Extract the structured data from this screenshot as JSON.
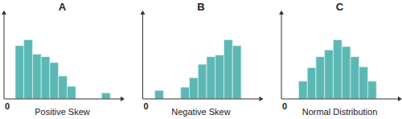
{
  "chart_data": [
    {
      "type": "histogram",
      "title": "A",
      "xlabel": "Positive Skew",
      "bins": [
        1.3,
        2.3,
        3.3,
        4.3,
        5.3,
        6.3,
        7.3,
        8.3,
        9.3,
        10.3,
        11.3,
        12.3
      ],
      "values": [
        63,
        70,
        53,
        50,
        43,
        27,
        15,
        0,
        0,
        0,
        7
      ],
      "color": "#5cb8b5",
      "xlim": [
        0,
        13.5
      ],
      "ylim": [
        0,
        100
      ],
      "xticks": [
        0
      ],
      "tick_labels": "x"
    },
    {
      "type": "histogram",
      "title": "B",
      "xlabel": "Negative Skew",
      "bins": [
        1.4,
        2.4,
        3.4,
        4.4,
        5.4,
        6.4,
        7.4,
        8.4,
        9.4,
        10.4,
        11.4
      ],
      "values": [
        10,
        0,
        0,
        14,
        25,
        41,
        50,
        52,
        70,
        63
      ],
      "color": "#5cb8b5",
      "xlim": [
        0,
        13.5
      ],
      "ylim": [
        0,
        100
      ],
      "xticks": [
        0
      ],
      "tick_labels": "x"
    },
    {
      "type": "histogram",
      "title": "C",
      "xlabel": "Normal Distribution",
      "bins": [
        2,
        3,
        4,
        5,
        6,
        7,
        8,
        9,
        10,
        11
      ],
      "values": [
        21,
        37,
        50,
        58,
        70,
        62,
        50,
        38,
        21
      ],
      "color": "#5cb8b5",
      "xlim": [
        0,
        13.5
      ],
      "ylim": [
        0,
        100
      ],
      "xticks": [
        0
      ],
      "tick_labels": "x"
    }
  ]
}
